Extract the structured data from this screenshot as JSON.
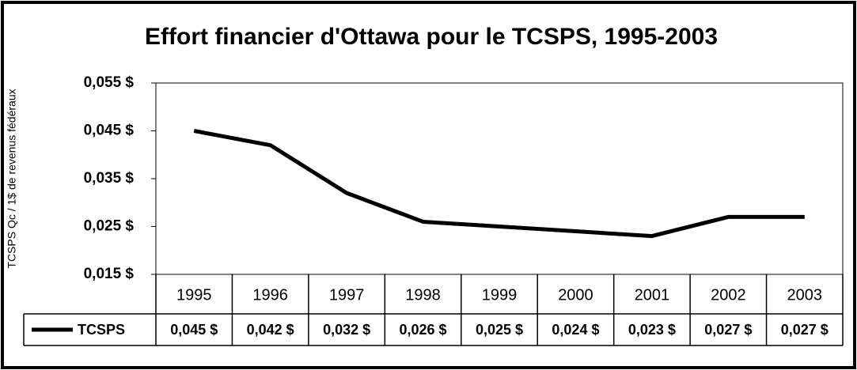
{
  "chart_data": {
    "type": "line",
    "title": "Effort financier d'Ottawa pour le TCSPS, 1995-2003",
    "y_label": "TCSPS Qc / 1$ de revenus fédéraux",
    "categories": [
      "1995",
      "1996",
      "1997",
      "1998",
      "1999",
      "2000",
      "2001",
      "2002",
      "2003"
    ],
    "series": [
      {
        "name": "TCSPS",
        "color": "#000000",
        "values": [
          0.045,
          0.042,
          0.032,
          0.026,
          0.025,
          0.024,
          0.023,
          0.027,
          0.027
        ],
        "value_labels": [
          "0,045 $",
          "0,042 $",
          "0,032 $",
          "0,026 $",
          "0,025 $",
          "0,024 $",
          "0,023 $",
          "0,027 $",
          "0,027 $"
        ]
      }
    ],
    "ylim": [
      0.015,
      0.055
    ],
    "yticks": [
      {
        "value": 0.015,
        "label": "0,015 $"
      },
      {
        "value": 0.025,
        "label": "0,025 $"
      },
      {
        "value": 0.035,
        "label": "0,035 $"
      },
      {
        "value": 0.045,
        "label": "0,045 $"
      },
      {
        "value": 0.055,
        "label": "0,055 $"
      }
    ],
    "data_table": true
  }
}
